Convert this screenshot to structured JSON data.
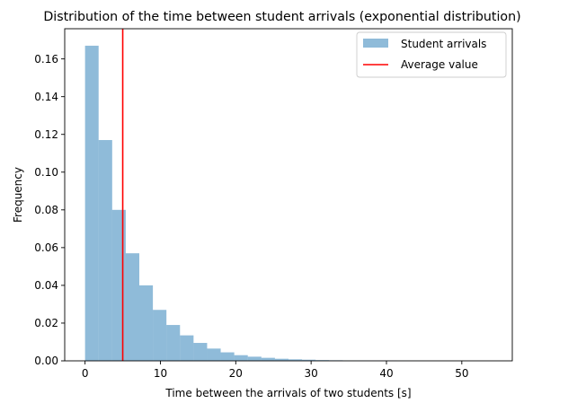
{
  "chart_data": {
    "type": "bar",
    "title": "Distribution of the time between student arrivals (exponential distribution)",
    "xlabel": "Time between the arrivals of two students [s]",
    "ylabel": "Frequency",
    "xlim": [
      -2.7,
      56.7
    ],
    "ylim": [
      0,
      0.176
    ],
    "xticks": [
      0,
      10,
      20,
      30,
      40,
      50
    ],
    "yticks": [
      0.0,
      0.02,
      0.04,
      0.06,
      0.08,
      0.1,
      0.12,
      0.14,
      0.16
    ],
    "ytick_labels": [
      "0.00",
      "0.02",
      "0.04",
      "0.06",
      "0.08",
      "0.10",
      "0.12",
      "0.14",
      "0.16"
    ],
    "grid": false,
    "legend_position": "top-right",
    "histogram": {
      "name": "Student arrivals",
      "color": "#1f77b4",
      "alpha": 0.5,
      "bin_width": 1.8,
      "bin_edges": [
        0,
        1.8,
        3.6,
        5.4,
        7.2,
        9.0,
        10.8,
        12.6,
        14.4,
        16.2,
        18.0,
        19.8,
        21.6,
        23.4,
        25.2,
        27.0,
        28.8,
        30.6,
        32.4,
        34.2,
        36.0,
        37.8,
        39.6,
        41.4,
        43.2,
        45.0,
        46.8,
        48.6,
        50.4,
        52.2,
        54.0
      ],
      "values": [
        0.167,
        0.117,
        0.08,
        0.057,
        0.04,
        0.027,
        0.019,
        0.0135,
        0.0095,
        0.0065,
        0.0045,
        0.003,
        0.0022,
        0.0016,
        0.0011,
        0.0008,
        0.0006,
        0.0004,
        0.0003,
        0.0002,
        0.00015,
        0.0001,
        0.0001,
        5e-05,
        5e-05,
        3e-05,
        2e-05,
        2e-05,
        1e-05,
        1e-05
      ]
    },
    "mean_line": {
      "name": "Average value",
      "x": 5.0,
      "color": "#ff0000"
    }
  }
}
